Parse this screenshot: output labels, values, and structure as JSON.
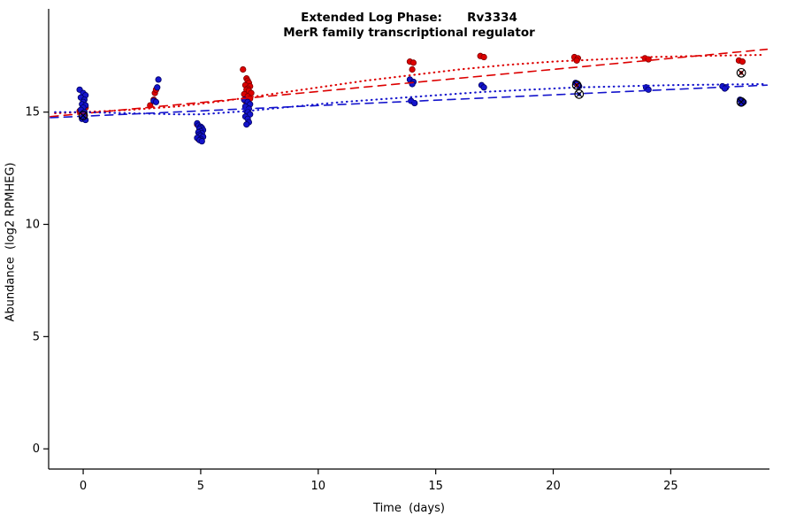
{
  "chart_data": {
    "type": "scatter",
    "title": "Extended Log Phase:      Rv3334",
    "subtitle": "MerR family transcriptional regulator",
    "xlabel": "Time  (days)",
    "ylabel": "Abundance  (log2 RPMHEG)",
    "xlim": [
      -1.47,
      29.2
    ],
    "ylim": [
      -0.9,
      19.6
    ],
    "xticks": [
      0,
      5,
      10,
      15,
      20,
      25
    ],
    "yticks": [
      0,
      5,
      10,
      15
    ],
    "grid": false,
    "legend": null,
    "colors": {
      "red": "#dd0000",
      "red_stroke": "#7d0000",
      "blue": "#1414cc",
      "blue_stroke": "#000060",
      "axis": "#000000",
      "flag": "#000000"
    },
    "series": [
      {
        "name": "red-replicates",
        "color_key": "red",
        "marker": "dot",
        "points": [
          [
            -0.15,
            15.05
          ],
          [
            0.05,
            14.9
          ],
          [
            0.1,
            15.2
          ],
          [
            -0.05,
            14.75
          ],
          [
            2.85,
            15.3
          ],
          [
            3.0,
            15.55
          ],
          [
            3.05,
            15.85
          ],
          [
            3.1,
            16.0
          ],
          [
            4.85,
            14.45
          ],
          [
            4.95,
            14.3
          ],
          [
            5.05,
            14.2
          ],
          [
            5.0,
            14.05
          ],
          [
            5.1,
            13.9
          ],
          [
            4.9,
            13.8
          ],
          [
            6.8,
            16.9
          ],
          [
            6.95,
            16.5
          ],
          [
            7.0,
            16.4
          ],
          [
            7.05,
            16.3
          ],
          [
            6.9,
            16.2
          ],
          [
            7.1,
            16.15
          ],
          [
            7.0,
            16.05
          ],
          [
            6.95,
            16.0
          ],
          [
            7.05,
            15.95
          ],
          [
            7.15,
            15.85
          ],
          [
            6.85,
            15.8
          ],
          [
            7.0,
            15.7
          ],
          [
            7.1,
            15.6
          ],
          [
            6.9,
            15.5
          ],
          [
            7.0,
            15.4
          ],
          [
            7.05,
            15.3
          ],
          [
            6.95,
            15.2
          ],
          [
            13.9,
            17.25
          ],
          [
            14.05,
            17.2
          ],
          [
            14.0,
            16.9
          ],
          [
            16.9,
            17.5
          ],
          [
            17.05,
            17.45
          ],
          [
            20.9,
            17.45
          ],
          [
            21.05,
            17.4
          ],
          [
            21.0,
            17.3
          ],
          [
            23.9,
            17.4
          ],
          [
            24.05,
            17.35
          ],
          [
            27.9,
            17.3
          ],
          [
            28.05,
            17.25
          ]
        ]
      },
      {
        "name": "blue-replicates",
        "color_key": "blue",
        "marker": "dot",
        "points": [
          [
            -0.15,
            16.0
          ],
          [
            0.0,
            15.85
          ],
          [
            0.1,
            15.75
          ],
          [
            -0.1,
            15.65
          ],
          [
            0.05,
            15.55
          ],
          [
            0.0,
            15.45
          ],
          [
            -0.05,
            15.35
          ],
          [
            0.1,
            15.3
          ],
          [
            0.0,
            15.2
          ],
          [
            -0.1,
            15.1
          ],
          [
            0.05,
            15.0
          ],
          [
            0.0,
            14.9
          ],
          [
            -0.05,
            14.7
          ],
          [
            0.1,
            14.65
          ],
          [
            3.2,
            16.45
          ],
          [
            3.15,
            16.1
          ],
          [
            3.0,
            15.5
          ],
          [
            3.1,
            15.45
          ],
          [
            4.85,
            14.5
          ],
          [
            4.9,
            14.4
          ],
          [
            5.0,
            14.35
          ],
          [
            5.05,
            14.3
          ],
          [
            4.95,
            14.25
          ],
          [
            5.1,
            14.2
          ],
          [
            5.0,
            14.15
          ],
          [
            4.9,
            14.1
          ],
          [
            5.05,
            14.05
          ],
          [
            4.95,
            14.0
          ],
          [
            5.0,
            13.95
          ],
          [
            5.1,
            13.9
          ],
          [
            4.85,
            13.85
          ],
          [
            5.0,
            13.8
          ],
          [
            4.95,
            13.75
          ],
          [
            5.05,
            13.7
          ],
          [
            6.85,
            15.55
          ],
          [
            7.0,
            15.45
          ],
          [
            7.1,
            15.35
          ],
          [
            6.9,
            15.25
          ],
          [
            7.05,
            15.15
          ],
          [
            6.95,
            15.05
          ],
          [
            7.0,
            15.0
          ],
          [
            7.1,
            14.9
          ],
          [
            6.9,
            14.8
          ],
          [
            7.0,
            14.7
          ],
          [
            7.05,
            14.55
          ],
          [
            6.95,
            14.45
          ],
          [
            13.9,
            16.45
          ],
          [
            14.05,
            16.35
          ],
          [
            14.0,
            16.25
          ],
          [
            13.95,
            15.5
          ],
          [
            14.1,
            15.4
          ],
          [
            16.95,
            16.2
          ],
          [
            17.05,
            16.1
          ],
          [
            20.95,
            16.3
          ],
          [
            21.1,
            16.15
          ],
          [
            23.95,
            16.1
          ],
          [
            24.05,
            16.0
          ],
          [
            27.2,
            16.15
          ],
          [
            27.35,
            16.1
          ],
          [
            27.3,
            16.05
          ],
          [
            27.95,
            15.55
          ],
          [
            28.1,
            15.45
          ],
          [
            28.0,
            15.4
          ]
        ]
      }
    ],
    "flagged_points": {
      "name": "flagged-outliers",
      "marker": "circle-cross",
      "points": [
        [
          0.0,
          14.85,
          "blue"
        ],
        [
          21.0,
          16.2,
          "red"
        ],
        [
          21.1,
          15.8,
          "blue"
        ],
        [
          28.0,
          16.75,
          "red"
        ],
        [
          28.0,
          15.45,
          "blue"
        ]
      ]
    },
    "trend_lines": [
      {
        "name": "red-smooth-fit",
        "color_key": "red",
        "dash": "dotted",
        "points": [
          [
            -1.2,
            14.95
          ],
          [
            0,
            15.0
          ],
          [
            2,
            15.1
          ],
          [
            4,
            15.25
          ],
          [
            6,
            15.5
          ],
          [
            8,
            15.8
          ],
          [
            10,
            16.1
          ],
          [
            12,
            16.4
          ],
          [
            14,
            16.65
          ],
          [
            16,
            16.9
          ],
          [
            18,
            17.1
          ],
          [
            20,
            17.25
          ],
          [
            22,
            17.35
          ],
          [
            24,
            17.45
          ],
          [
            26,
            17.5
          ],
          [
            29,
            17.55
          ]
        ]
      },
      {
        "name": "red-linear-fit",
        "color_key": "red",
        "dash": "longdash",
        "points": [
          [
            -1.4,
            14.8
          ],
          [
            29.1,
            17.8
          ]
        ]
      },
      {
        "name": "blue-smooth-fit",
        "color_key": "blue",
        "dash": "dotted",
        "points": [
          [
            -1.2,
            15.0
          ],
          [
            0,
            15.0
          ],
          [
            2,
            14.95
          ],
          [
            4,
            14.9
          ],
          [
            5,
            14.9
          ],
          [
            7,
            15.05
          ],
          [
            9,
            15.25
          ],
          [
            11,
            15.45
          ],
          [
            13,
            15.6
          ],
          [
            15,
            15.75
          ],
          [
            17,
            15.9
          ],
          [
            19,
            16.0
          ],
          [
            21,
            16.1
          ],
          [
            23,
            16.15
          ],
          [
            25,
            16.2
          ],
          [
            29,
            16.25
          ]
        ]
      },
      {
        "name": "blue-linear-fit",
        "color_key": "blue",
        "dash": "longdash",
        "points": [
          [
            -1.4,
            14.75
          ],
          [
            29.1,
            16.2
          ]
        ]
      }
    ]
  }
}
